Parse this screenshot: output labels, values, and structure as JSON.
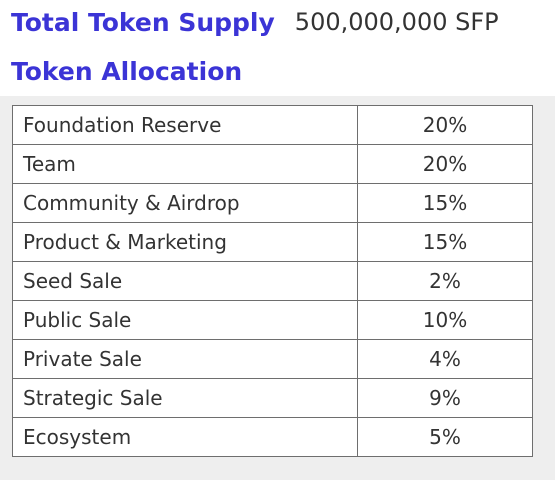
{
  "supply": {
    "label": "Total Token Supply",
    "value": "500,000,000 SFP"
  },
  "allocation": {
    "title": "Token Allocation",
    "rows": [
      {
        "name": "Foundation Reserve",
        "percent": "20%"
      },
      {
        "name": "Team",
        "percent": "20%"
      },
      {
        "name": "Community & Airdrop",
        "percent": "15%"
      },
      {
        "name": "Product & Marketing",
        "percent": "15%"
      },
      {
        "name": "Seed Sale",
        "percent": "2%"
      },
      {
        "name": "Public Sale",
        "percent": "10%"
      },
      {
        "name": "Private Sale",
        "percent": "4%"
      },
      {
        "name": "Strategic Sale",
        "percent": "9%"
      },
      {
        "name": "Ecosystem",
        "percent": "5%"
      }
    ]
  },
  "colors": {
    "heading": "#3b34d6",
    "text": "#333333",
    "border": "#6e6e6e",
    "table_background": "#eeeeee"
  }
}
